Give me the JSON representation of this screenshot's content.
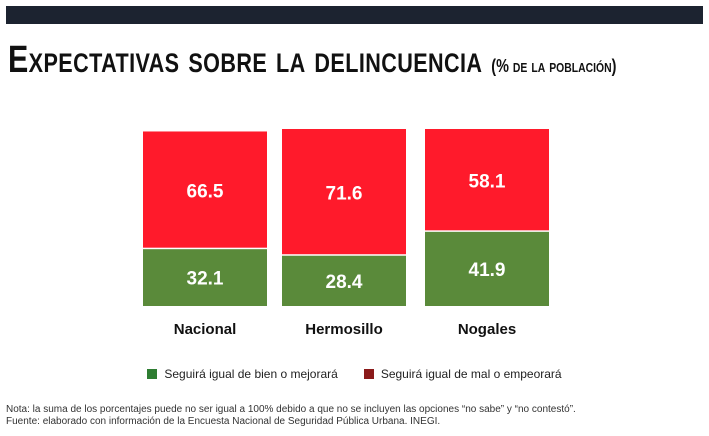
{
  "title": "Expectativas sobre la delincuencia",
  "subtitle": "(% de la población)",
  "colors": {
    "header_bar": "#1c2330",
    "peor": "#ff1a2b",
    "mejor": "#5a8a3a",
    "legend_peor": "#8b1a1a",
    "legend_mejor": "#2e7d32"
  },
  "chart_data": {
    "type": "bar",
    "stacked": true,
    "categories": [
      "Nacional",
      "Hermosillo",
      "Nogales"
    ],
    "series": [
      {
        "name": "Seguirá igual de bien o mejorará",
        "values": [
          32.1,
          28.4,
          41.9
        ]
      },
      {
        "name": "Seguirá igual de mal o empeorará",
        "values": [
          66.5,
          71.6,
          58.1
        ]
      }
    ],
    "legend_position": "bottom"
  },
  "legend": {
    "mejor": "Seguirá igual de bien o mejorará",
    "peor": "Seguirá igual de mal o empeorará"
  },
  "notes": {
    "nota": "Nota: la suma de los porcentajes puede no ser igual a 100% debido a que no se incluyen las opciones “no sabe” y “no contestó”.",
    "fuente": "Fuente: elaborado con información de la Encuesta Nacional de Seguridad Pública Urbana. INEGI."
  }
}
